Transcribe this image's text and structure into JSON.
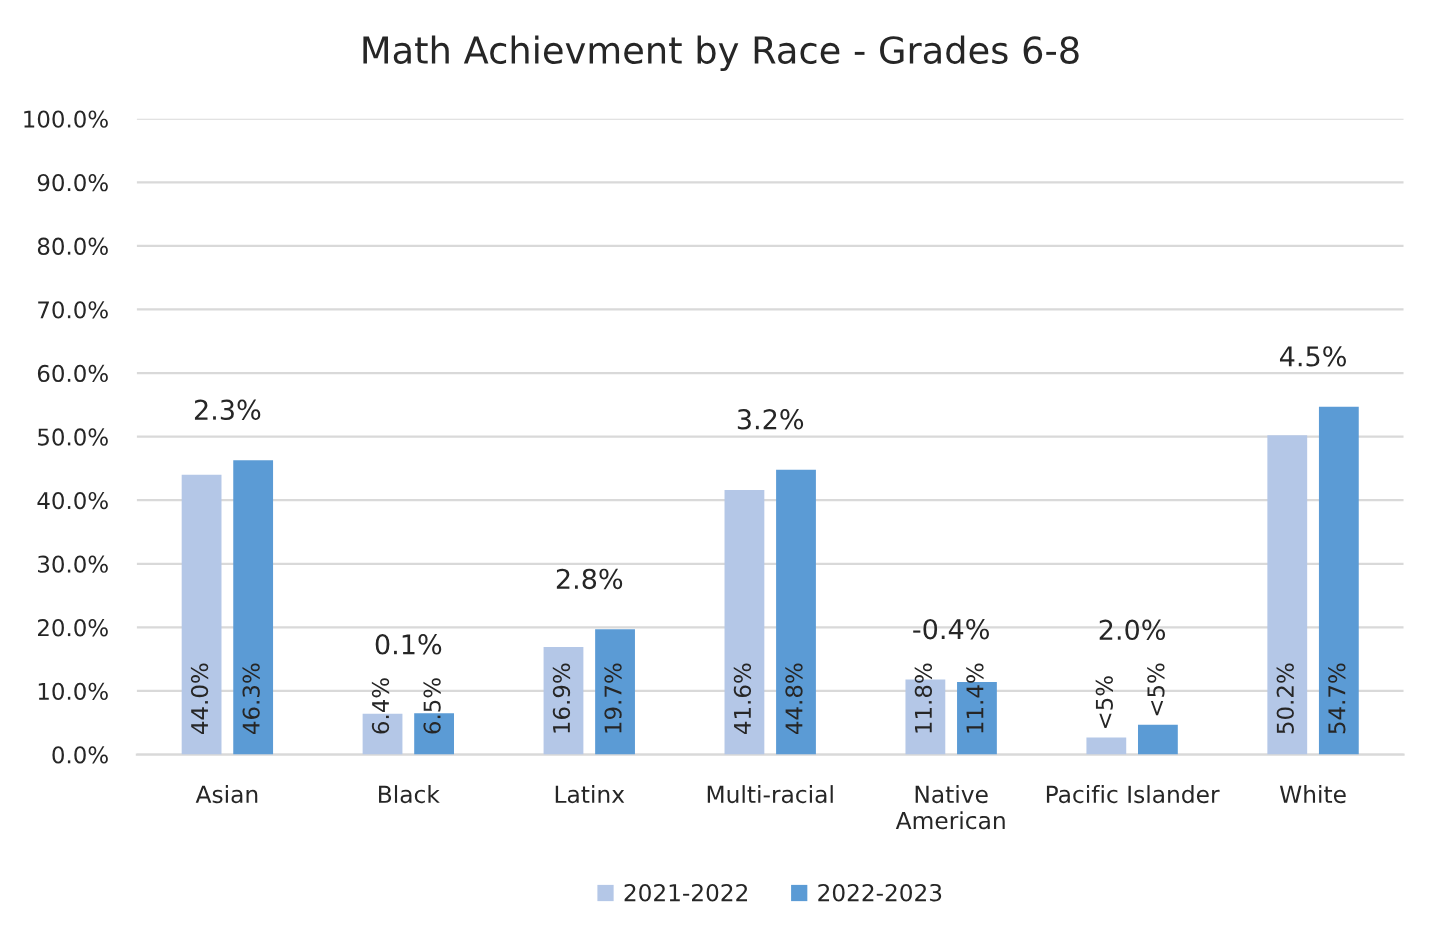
{
  "chart_data": {
    "type": "bar",
    "title": "Math Achievment by Race - Grades 6-8",
    "categories": [
      "Asian",
      "Black",
      "Latinx",
      "Multi-racial",
      "Native\nAmerican",
      "Pacific Islander",
      "White"
    ],
    "series": [
      {
        "name": "2021-2022",
        "color": "#b4c7e7",
        "values": [
          44.0,
          6.4,
          16.9,
          41.6,
          11.8,
          2.7,
          50.2
        ],
        "value_labels": [
          "44.0%",
          "6.4%",
          "16.9%",
          "41.6%",
          "11.8%",
          "<5%",
          "50.2%"
        ]
      },
      {
        "name": "2022-2023",
        "color": "#5b9bd5",
        "values": [
          46.3,
          6.5,
          19.7,
          44.8,
          11.4,
          4.7,
          54.7
        ],
        "value_labels": [
          "46.3%",
          "6.5%",
          "19.7%",
          "44.8%",
          "11.4%",
          "<5%",
          "54.7%"
        ]
      }
    ],
    "ylim": [
      0,
      100
    ],
    "yticks": [
      {
        "value": 0,
        "label": "0.0%"
      },
      {
        "value": 10,
        "label": "10.0%"
      },
      {
        "value": 20,
        "label": "20.0%"
      },
      {
        "value": 30,
        "label": "30.0%"
      },
      {
        "value": 40,
        "label": "40.0%"
      },
      {
        "value": 50,
        "label": "50.0%"
      },
      {
        "value": 60,
        "label": "60.0%"
      },
      {
        "value": 70,
        "label": "70.0%"
      },
      {
        "value": 80,
        "label": "80.0%"
      },
      {
        "value": 90,
        "label": "90.0%"
      },
      {
        "value": 100,
        "label": "100.0%"
      }
    ],
    "grid": "y",
    "legend": "bottom",
    "annotations": [
      "2.3%",
      "0.1%",
      "2.8%",
      "3.2%",
      "-0.4%",
      "2.0%",
      "4.5%"
    ]
  }
}
